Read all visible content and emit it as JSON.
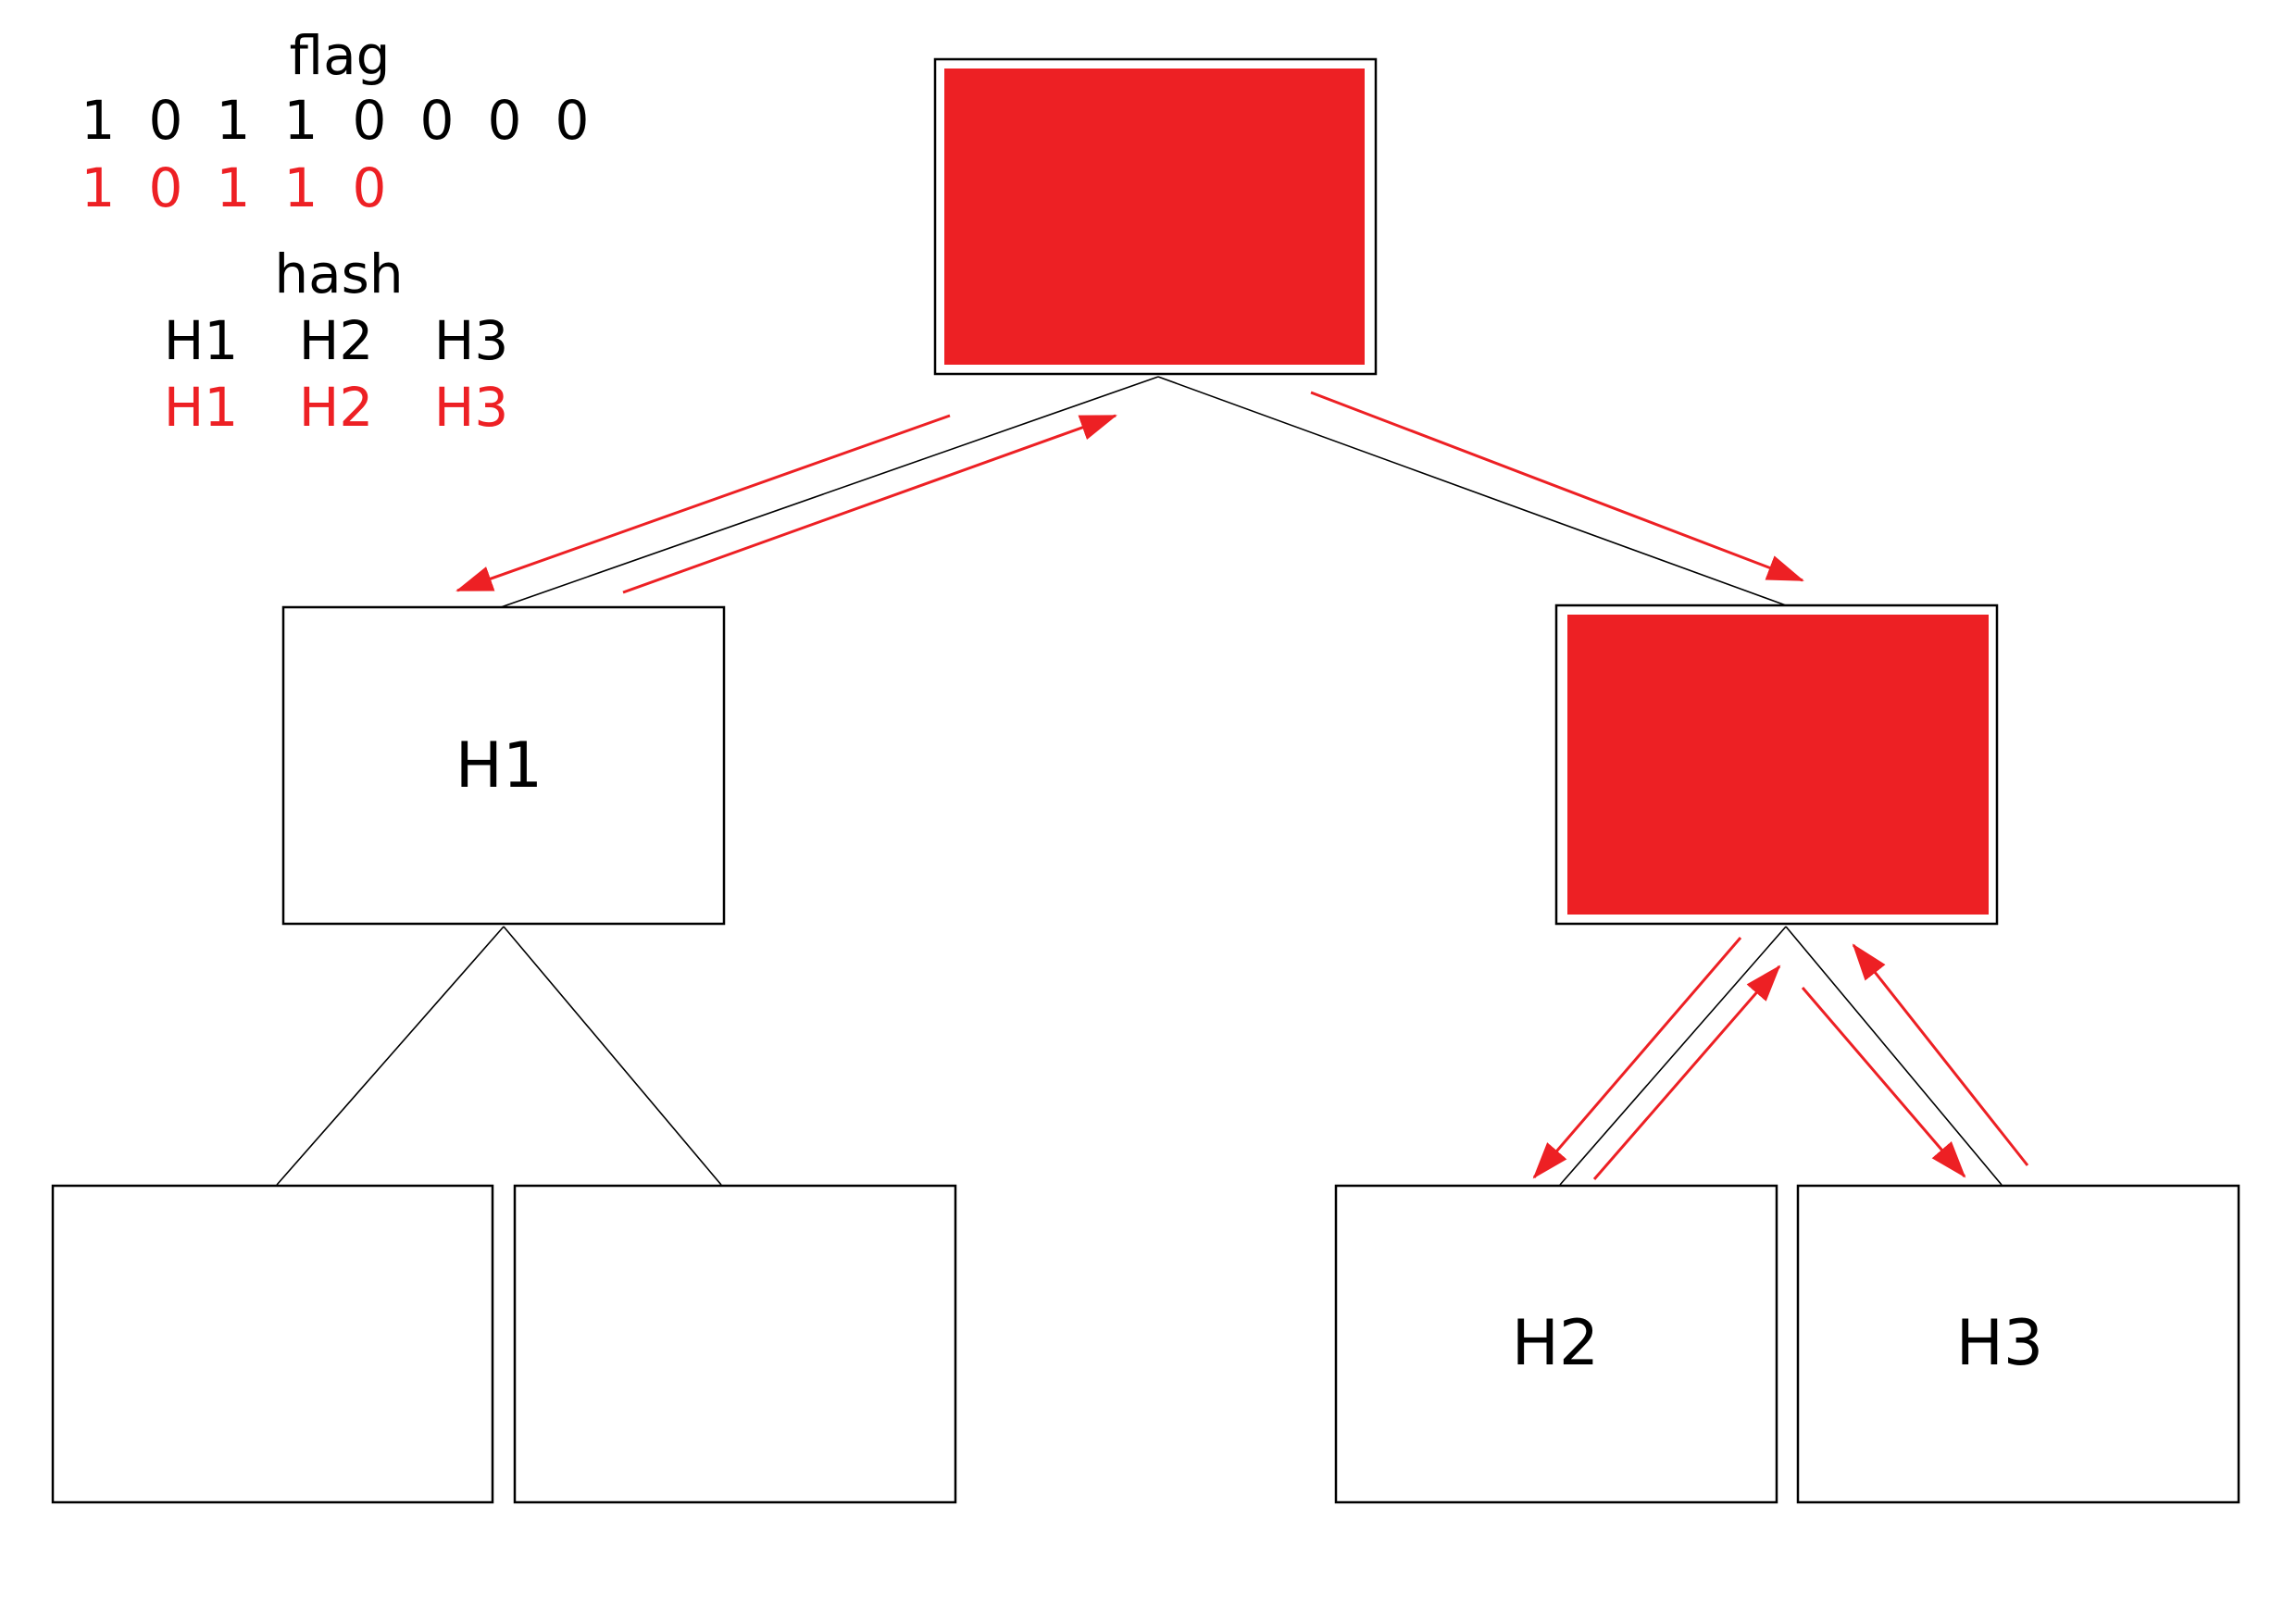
{
  "flag": {
    "title": "flag",
    "bits": [
      "1",
      "0",
      "1",
      "1",
      "0",
      "0",
      "0",
      "0"
    ],
    "consumed": [
      "1",
      "0",
      "1",
      "1",
      "0"
    ]
  },
  "hash": {
    "title": "hash",
    "items": [
      "H1",
      "H2",
      "H3"
    ],
    "consumed": [
      "H1",
      "H2",
      "H3"
    ]
  },
  "tree": {
    "root": {
      "label": "",
      "filled": true
    },
    "left": {
      "label": "H1",
      "filled": false
    },
    "right": {
      "label": "",
      "filled": true
    },
    "leaf_ll": {
      "label": ""
    },
    "leaf_lr": {
      "label": ""
    },
    "leaf_rl": {
      "label": "H2"
    },
    "leaf_rr": {
      "label": "H3"
    }
  },
  "colors": {
    "accent": "#ed2024",
    "line": "#000000",
    "text": "#000000"
  }
}
